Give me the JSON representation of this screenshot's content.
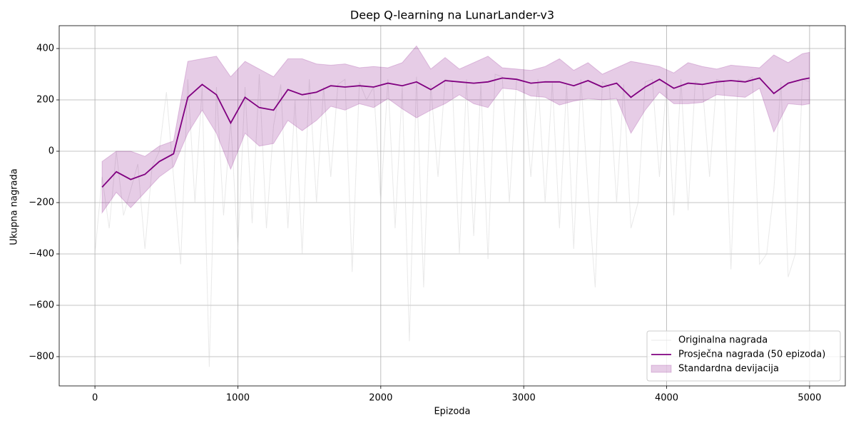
{
  "chart_data": {
    "type": "line",
    "title": "Deep Q-learning na LunarLander-v3",
    "x_label": "Epizoda",
    "y_label": "Ukupna nagrada",
    "xlim": [
      -250,
      5250
    ],
    "ylim": [
      -914,
      489
    ],
    "xticks": [
      0,
      1000,
      2000,
      3000,
      4000,
      5000
    ],
    "yticks": [
      {
        "value": -800,
        "label": "−800"
      },
      {
        "value": -600,
        "label": "−600"
      },
      {
        "value": -400,
        "label": "−400"
      },
      {
        "value": -200,
        "label": "−200"
      },
      0,
      200,
      400
    ],
    "grid": true,
    "legend": "lower right",
    "series": [
      {
        "name": "Originalna nagrada",
        "color": "#d3d3d3",
        "x": [
          0,
          50,
          100,
          150,
          200,
          250,
          300,
          350,
          400,
          450,
          500,
          550,
          600,
          650,
          700,
          750,
          800,
          850,
          900,
          950,
          1000,
          1050,
          1100,
          1150,
          1200,
          1250,
          1300,
          1350,
          1400,
          1450,
          1500,
          1550,
          1600,
          1650,
          1700,
          1750,
          1800,
          1850,
          1900,
          1950,
          2000,
          2050,
          2100,
          2150,
          2200,
          2250,
          2300,
          2350,
          2400,
          2450,
          2500,
          2550,
          2600,
          2650,
          2700,
          2750,
          2800,
          2850,
          2900,
          2950,
          3000,
          3050,
          3100,
          3150,
          3200,
          3250,
          3300,
          3350,
          3400,
          3450,
          3500,
          3550,
          3600,
          3650,
          3700,
          3750,
          3800,
          3850,
          3900,
          3950,
          4000,
          4050,
          4100,
          4150,
          4200,
          4250,
          4300,
          4350,
          4400,
          4450,
          4500,
          4550,
          4600,
          4650,
          4700,
          4750,
          4800,
          4850,
          4900,
          4950,
          5000
        ],
        "values": [
          -400,
          -100,
          -300,
          0,
          -250,
          -150,
          -50,
          -380,
          -60,
          0,
          230,
          -100,
          -440,
          280,
          -200,
          250,
          -840,
          250,
          -250,
          120,
          -380,
          250,
          -280,
          300,
          -300,
          100,
          260,
          -300,
          200,
          -400,
          280,
          -200,
          250,
          -100,
          260,
          280,
          -470,
          270,
          200,
          250,
          -200,
          280,
          -300,
          250,
          -740,
          290,
          -530,
          260,
          -100,
          280,
          270,
          -400,
          280,
          -330,
          260,
          -420,
          300,
          290,
          -200,
          280,
          270,
          -100,
          280,
          -200,
          270,
          -300,
          260,
          -380,
          280,
          -150,
          -530,
          270,
          250,
          -200,
          260,
          -300,
          -200,
          270,
          280,
          -100,
          270,
          -250,
          280,
          -230,
          270,
          260,
          -100,
          280,
          270,
          -460,
          280,
          270,
          290,
          -440,
          -400,
          -150,
          270,
          -490,
          -400,
          280,
          270
        ]
      },
      {
        "name": "Prosječna nagrada (50 epizoda)",
        "color": "#800080",
        "x": [
          50,
          150,
          250,
          350,
          450,
          550,
          650,
          750,
          850,
          950,
          1050,
          1150,
          1250,
          1350,
          1450,
          1550,
          1650,
          1750,
          1850,
          1950,
          2050,
          2150,
          2250,
          2350,
          2450,
          2550,
          2650,
          2750,
          2850,
          2950,
          3050,
          3150,
          3250,
          3350,
          3450,
          3550,
          3650,
          3750,
          3850,
          3950,
          4050,
          4150,
          4250,
          4350,
          4450,
          4550,
          4650,
          4750,
          4850,
          4950,
          5000
        ],
        "values": [
          -140,
          -80,
          -110,
          -90,
          -40,
          -10,
          210,
          260,
          220,
          110,
          210,
          170,
          160,
          240,
          220,
          230,
          255,
          250,
          255,
          250,
          265,
          255,
          270,
          240,
          275,
          270,
          265,
          270,
          285,
          280,
          265,
          270,
          270,
          255,
          275,
          250,
          265,
          210,
          250,
          280,
          245,
          265,
          260,
          270,
          275,
          270,
          285,
          225,
          265,
          280,
          285
        ]
      },
      {
        "name": "Standardna devijacija",
        "color": "#800080",
        "band": true,
        "x": [
          50,
          150,
          250,
          350,
          450,
          550,
          650,
          750,
          850,
          950,
          1050,
          1150,
          1250,
          1350,
          1450,
          1550,
          1650,
          1750,
          1850,
          1950,
          2050,
          2150,
          2250,
          2350,
          2450,
          2550,
          2650,
          2750,
          2850,
          2950,
          3050,
          3150,
          3250,
          3350,
          3450,
          3550,
          3650,
          3750,
          3850,
          3950,
          4050,
          4150,
          4250,
          4350,
          4450,
          4550,
          4650,
          4750,
          4850,
          4950,
          5000
        ],
        "upper": [
          -40,
          0,
          0,
          -20,
          20,
          40,
          350,
          360,
          370,
          290,
          350,
          320,
          290,
          360,
          360,
          340,
          335,
          340,
          325,
          330,
          325,
          345,
          410,
          320,
          365,
          320,
          345,
          370,
          325,
          320,
          315,
          330,
          360,
          315,
          345,
          300,
          325,
          350,
          340,
          330,
          305,
          345,
          330,
          320,
          335,
          330,
          325,
          375,
          345,
          380,
          385
        ],
        "lower": [
          -240,
          -160,
          -220,
          -160,
          -100,
          -60,
          70,
          160,
          70,
          -70,
          70,
          20,
          30,
          120,
          80,
          120,
          175,
          160,
          185,
          170,
          205,
          165,
          130,
          160,
          185,
          220,
          185,
          170,
          245,
          240,
          215,
          210,
          180,
          195,
          205,
          200,
          205,
          70,
          160,
          230,
          185,
          185,
          190,
          220,
          215,
          210,
          245,
          75,
          185,
          180,
          185
        ]
      }
    ]
  }
}
